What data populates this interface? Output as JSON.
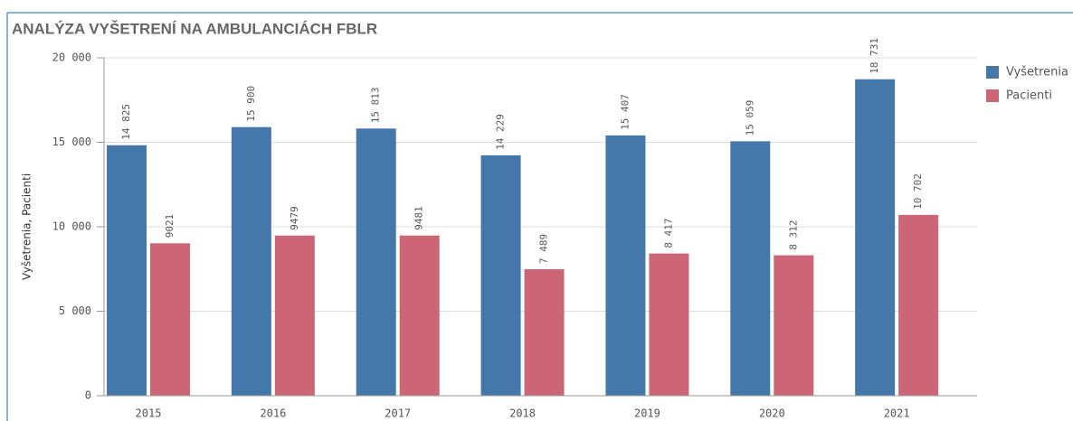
{
  "chart_data": {
    "type": "bar",
    "title": "ANALÝZA VYŠETRENÍ NA AMBULANCIÁCH FBLR",
    "y_label": "Vyšetrenia, Pacienti",
    "categories": [
      "2015",
      "2016",
      "2017",
      "2018",
      "2019",
      "2020",
      "2021"
    ],
    "series": [
      {
        "name": "Vyšetrenia",
        "color": "#4477aa",
        "values": [
          14825,
          15900,
          15813,
          14229,
          15407,
          15059,
          18731
        ],
        "value_labels": [
          "14 825",
          "15 900",
          "15 813",
          "14 229",
          "15 407",
          "15 059",
          "18 731"
        ]
      },
      {
        "name": "Pacienti",
        "color": "#cc6677",
        "values": [
          9021,
          9479,
          9481,
          7489,
          8417,
          8312,
          10702
        ],
        "value_labels": [
          "9021",
          "9479",
          "9481",
          "7 489",
          "8 417",
          "8 312",
          "10 702"
        ]
      }
    ],
    "ylim": [
      0,
      20000
    ],
    "yticks": [
      0,
      {
        "value": 5000,
        "label": "5 000"
      },
      {
        "value": 10000,
        "label": "10 000"
      },
      {
        "value": 15000,
        "label": "15 000"
      },
      {
        "value": 20000,
        "label": "20 000"
      }
    ],
    "grid": true,
    "legend": "right"
  }
}
